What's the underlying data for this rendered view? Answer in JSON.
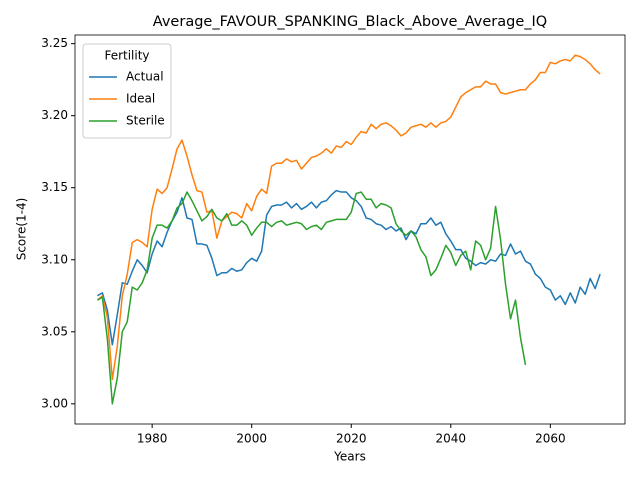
{
  "chart_data": {
    "type": "line",
    "title": "Average_FAVOUR_SPANKING_Black_Above_Average_IQ",
    "xlabel": "Years",
    "ylabel": "Score(1-4)",
    "legend_title": "Fertility",
    "legend": "upper left",
    "x": [
      1969,
      1970,
      1971,
      1972,
      1973,
      1974,
      1975,
      1976,
      1977,
      1978,
      1979,
      1980,
      1981,
      1982,
      1983,
      1984,
      1985,
      1986,
      1987,
      1988,
      1989,
      1990,
      1991,
      1992,
      1993,
      1994,
      1995,
      1996,
      1997,
      1998,
      1999,
      2000,
      2001,
      2002,
      2003,
      2004,
      2005,
      2006,
      2007,
      2008,
      2009,
      2010,
      2011,
      2012,
      2013,
      2014,
      2015,
      2016,
      2017,
      2018,
      2019,
      2020,
      2021,
      2022,
      2023,
      2024,
      2025,
      2026,
      2027,
      2028,
      2029,
      2030,
      2031,
      2032,
      2033,
      2034,
      2035,
      2036,
      2037,
      2038,
      2039,
      2040,
      2041,
      2042,
      2043,
      2044,
      2045,
      2046,
      2047,
      2048,
      2049,
      2050,
      2051,
      2052,
      2053,
      2054,
      2055,
      2056,
      2057,
      2058,
      2059,
      2060,
      2061,
      2062,
      2063,
      2064,
      2065,
      2066,
      2067,
      2068,
      2069,
      2070
    ],
    "series": [
      {
        "name": "Actual",
        "color": "#1f77b4",
        "values": [
          3.075,
          3.077,
          3.065,
          3.041,
          3.062,
          3.084,
          3.083,
          3.092,
          3.1,
          3.096,
          3.091,
          3.104,
          3.113,
          3.109,
          3.119,
          3.127,
          3.133,
          3.143,
          3.129,
          3.128,
          3.111,
          3.111,
          3.11,
          3.101,
          3.089,
          3.091,
          3.091,
          3.094,
          3.092,
          3.093,
          3.098,
          3.101,
          3.099,
          3.106,
          3.131,
          3.137,
          3.138,
          3.138,
          3.14,
          3.136,
          3.139,
          3.135,
          3.137,
          3.14,
          3.136,
          3.14,
          3.141,
          3.145,
          3.148,
          3.147,
          3.147,
          3.143,
          3.141,
          3.137,
          3.129,
          3.128,
          3.125,
          3.124,
          3.121,
          3.123,
          3.12,
          3.122,
          3.114,
          3.12,
          3.118,
          3.125,
          3.125,
          3.129,
          3.124,
          3.126,
          3.118,
          3.113,
          3.107,
          3.107,
          3.101,
          3.099,
          3.096,
          3.098,
          3.097,
          3.1,
          3.099,
          3.104,
          3.103,
          3.111,
          3.104,
          3.106,
          3.099,
          3.097,
          3.09,
          3.087,
          3.081,
          3.079,
          3.072,
          3.075,
          3.069,
          3.077,
          3.07,
          3.081,
          3.076,
          3.087,
          3.08,
          3.09
        ]
      },
      {
        "name": "Ideal",
        "color": "#ff7f0e",
        "values": [
          3.072,
          3.075,
          3.06,
          3.017,
          3.04,
          3.075,
          3.09,
          3.112,
          3.114,
          3.112,
          3.109,
          3.135,
          3.149,
          3.146,
          3.15,
          3.163,
          3.177,
          3.183,
          3.172,
          3.159,
          3.148,
          3.147,
          3.133,
          3.134,
          3.115,
          3.127,
          3.13,
          3.133,
          3.132,
          3.129,
          3.139,
          3.134,
          3.144,
          3.149,
          3.146,
          3.165,
          3.167,
          3.167,
          3.17,
          3.168,
          3.169,
          3.163,
          3.167,
          3.171,
          3.172,
          3.174,
          3.177,
          3.174,
          3.179,
          3.178,
          3.182,
          3.18,
          3.185,
          3.189,
          3.188,
          3.194,
          3.191,
          3.194,
          3.195,
          3.193,
          3.19,
          3.186,
          3.188,
          3.192,
          3.193,
          3.194,
          3.192,
          3.195,
          3.192,
          3.195,
          3.196,
          3.199,
          3.206,
          3.213,
          3.216,
          3.218,
          3.22,
          3.22,
          3.224,
          3.222,
          3.222,
          3.216,
          3.215,
          3.216,
          3.217,
          3.218,
          3.218,
          3.222,
          3.225,
          3.23,
          3.23,
          3.237,
          3.236,
          3.238,
          3.239,
          3.238,
          3.242,
          3.241,
          3.239,
          3.236,
          3.232,
          3.229
        ]
      },
      {
        "name": "Sterile",
        "color": "#2ca02c",
        "values": [
          3.072,
          3.074,
          3.045,
          3.0,
          3.018,
          3.05,
          3.057,
          3.081,
          3.079,
          3.084,
          3.093,
          3.115,
          3.124,
          3.124,
          3.122,
          3.127,
          3.136,
          3.139,
          3.147,
          3.141,
          3.134,
          3.127,
          3.13,
          3.135,
          3.129,
          3.127,
          3.132,
          3.124,
          3.124,
          3.127,
          3.124,
          3.117,
          3.122,
          3.126,
          3.126,
          3.123,
          3.126,
          3.127,
          3.124,
          3.125,
          3.126,
          3.125,
          3.121,
          3.123,
          3.124,
          3.121,
          3.126,
          3.127,
          3.128,
          3.128,
          3.128,
          3.133,
          3.146,
          3.147,
          3.142,
          3.142,
          3.136,
          3.139,
          3.138,
          3.136,
          3.125,
          3.12,
          3.117,
          3.12,
          3.116,
          3.107,
          3.102,
          3.089,
          3.093,
          3.101,
          3.11,
          3.105,
          3.096,
          3.103,
          3.106,
          3.093,
          3.113,
          3.11,
          3.1,
          3.108,
          3.137,
          3.114,
          3.083,
          3.059,
          3.072,
          3.046,
          3.027,
          null,
          null,
          null,
          null,
          null,
          null,
          null,
          null,
          null,
          null,
          null,
          null,
          null,
          null,
          null
        ]
      }
    ],
    "xlim": [
      1964.5,
      2075
    ],
    "xticks": [
      1980,
      2000,
      2020,
      2040,
      2060
    ],
    "ylim": [
      2.986,
      3.256
    ],
    "yticks": [
      {
        "value": 3.0,
        "label": "3.00"
      },
      3.05,
      {
        "value": 3.1,
        "label": "3.10"
      },
      3.15,
      {
        "value": 3.2,
        "label": "3.20"
      },
      3.25
    ]
  }
}
